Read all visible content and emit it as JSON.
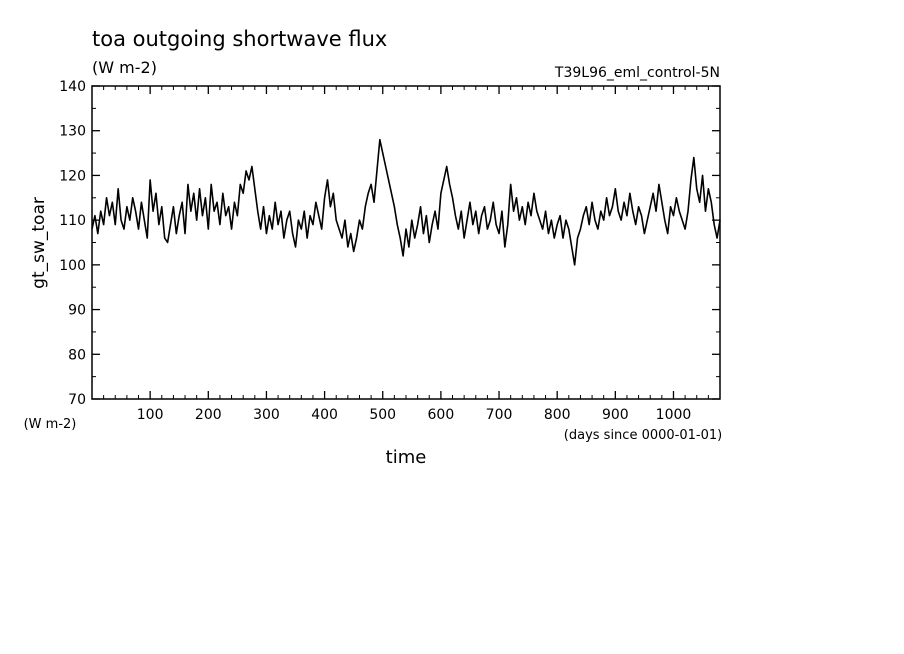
{
  "chart_data": {
    "type": "line",
    "title": "toa outgoing shortwave flux",
    "title_unit": "(W m-2)",
    "experiment": "T39L96_eml_control-5N",
    "ylabel": "gt_sw_toar",
    "ylabel_unit": "(W m-2)",
    "xlabel": "time",
    "xlabel_unit": "(days since 0000-01-01)",
    "xlim": [
      0,
      1080
    ],
    "ylim": [
      70,
      140
    ],
    "x_ticks": [
      100,
      200,
      300,
      400,
      500,
      600,
      700,
      800,
      900,
      1000
    ],
    "y_ticks": [
      70,
      80,
      90,
      100,
      110,
      120,
      130,
      140
    ],
    "x_tick_labels": [
      "100",
      "200",
      "300",
      "400",
      "500",
      "600",
      "700",
      "800",
      "900",
      "1000"
    ],
    "y_tick_labels": [
      "70",
      "80",
      "90",
      "100",
      "110",
      "120",
      "130",
      "140"
    ],
    "grid": false,
    "line_color": "#000000",
    "series": [
      {
        "x": [
          0,
          5,
          10,
          15,
          20,
          25,
          30,
          35,
          40,
          45,
          50,
          55,
          60,
          65,
          70,
          75,
          80,
          85,
          90,
          95,
          100,
          105,
          110,
          115,
          120,
          125,
          130,
          135,
          140,
          145,
          150,
          155,
          160,
          165,
          170,
          175,
          180,
          185,
          190,
          195,
          200,
          205,
          210,
          215,
          220,
          225,
          230,
          235,
          240,
          245,
          250,
          255,
          260,
          265,
          270,
          275,
          280,
          285,
          290,
          295,
          300,
          305,
          310,
          315,
          320,
          325,
          330,
          335,
          340,
          345,
          350,
          355,
          360,
          365,
          370,
          375,
          380,
          385,
          390,
          395,
          400,
          405,
          410,
          415,
          420,
          425,
          430,
          435,
          440,
          445,
          450,
          455,
          460,
          465,
          470,
          475,
          480,
          485,
          490,
          495,
          500,
          505,
          510,
          515,
          520,
          525,
          530,
          535,
          540,
          545,
          550,
          555,
          560,
          565,
          570,
          575,
          580,
          585,
          590,
          595,
          600,
          605,
          610,
          615,
          620,
          625,
          630,
          635,
          640,
          645,
          650,
          655,
          660,
          665,
          670,
          675,
          680,
          685,
          690,
          695,
          700,
          705,
          710,
          715,
          720,
          725,
          730,
          735,
          740,
          745,
          750,
          755,
          760,
          765,
          770,
          775,
          780,
          785,
          790,
          795,
          800,
          805,
          810,
          815,
          820,
          825,
          830,
          835,
          840,
          845,
          850,
          855,
          860,
          865,
          870,
          875,
          880,
          885,
          890,
          895,
          900,
          905,
          910,
          915,
          920,
          925,
          930,
          935,
          940,
          945,
          950,
          955,
          960,
          965,
          970,
          975,
          980,
          985,
          990,
          995,
          1000,
          1005,
          1010,
          1015,
          1020,
          1025,
          1030,
          1035,
          1040,
          1045,
          1050,
          1055,
          1060,
          1065,
          1070,
          1075,
          1080
        ],
        "y": [
          108,
          111,
          107,
          112,
          109,
          115,
          111,
          114,
          109,
          117,
          110,
          108,
          113,
          110,
          115,
          112,
          108,
          114,
          110,
          106,
          119,
          112,
          116,
          109,
          113,
          106,
          105,
          109,
          113,
          107,
          111,
          114,
          107,
          118,
          112,
          116,
          110,
          117,
          111,
          115,
          108,
          118,
          112,
          114,
          109,
          116,
          111,
          113,
          108,
          114,
          111,
          118,
          116,
          121,
          119,
          122,
          117,
          112,
          108,
          113,
          107,
          111,
          108,
          114,
          109,
          112,
          106,
          110,
          112,
          107,
          104,
          110,
          108,
          112,
          106,
          111,
          109,
          114,
          111,
          108,
          115,
          119,
          113,
          116,
          110,
          108,
          106,
          110,
          104,
          107,
          103,
          106,
          110,
          108,
          113,
          116,
          118,
          114,
          121,
          128,
          125,
          122,
          119,
          116,
          113,
          109,
          106,
          102,
          108,
          104,
          110,
          106,
          109,
          113,
          107,
          111,
          105,
          109,
          112,
          108,
          116,
          119,
          122,
          118,
          115,
          111,
          108,
          112,
          106,
          110,
          114,
          109,
          112,
          107,
          111,
          113,
          108,
          110,
          114,
          109,
          107,
          112,
          104,
          109,
          118,
          112,
          115,
          110,
          113,
          109,
          114,
          111,
          116,
          112,
          110,
          108,
          112,
          107,
          110,
          106,
          109,
          111,
          106,
          110,
          108,
          104,
          100,
          106,
          108,
          111,
          113,
          109,
          114,
          110,
          108,
          112,
          110,
          115,
          111,
          113,
          117,
          112,
          110,
          114,
          111,
          116,
          112,
          109,
          113,
          111,
          107,
          110,
          113,
          116,
          112,
          118,
          114,
          110,
          107,
          113,
          111,
          115,
          112,
          110,
          108,
          112,
          119,
          124,
          117,
          114,
          120,
          112,
          117,
          114,
          109,
          106,
          110
        ]
      }
    ]
  }
}
